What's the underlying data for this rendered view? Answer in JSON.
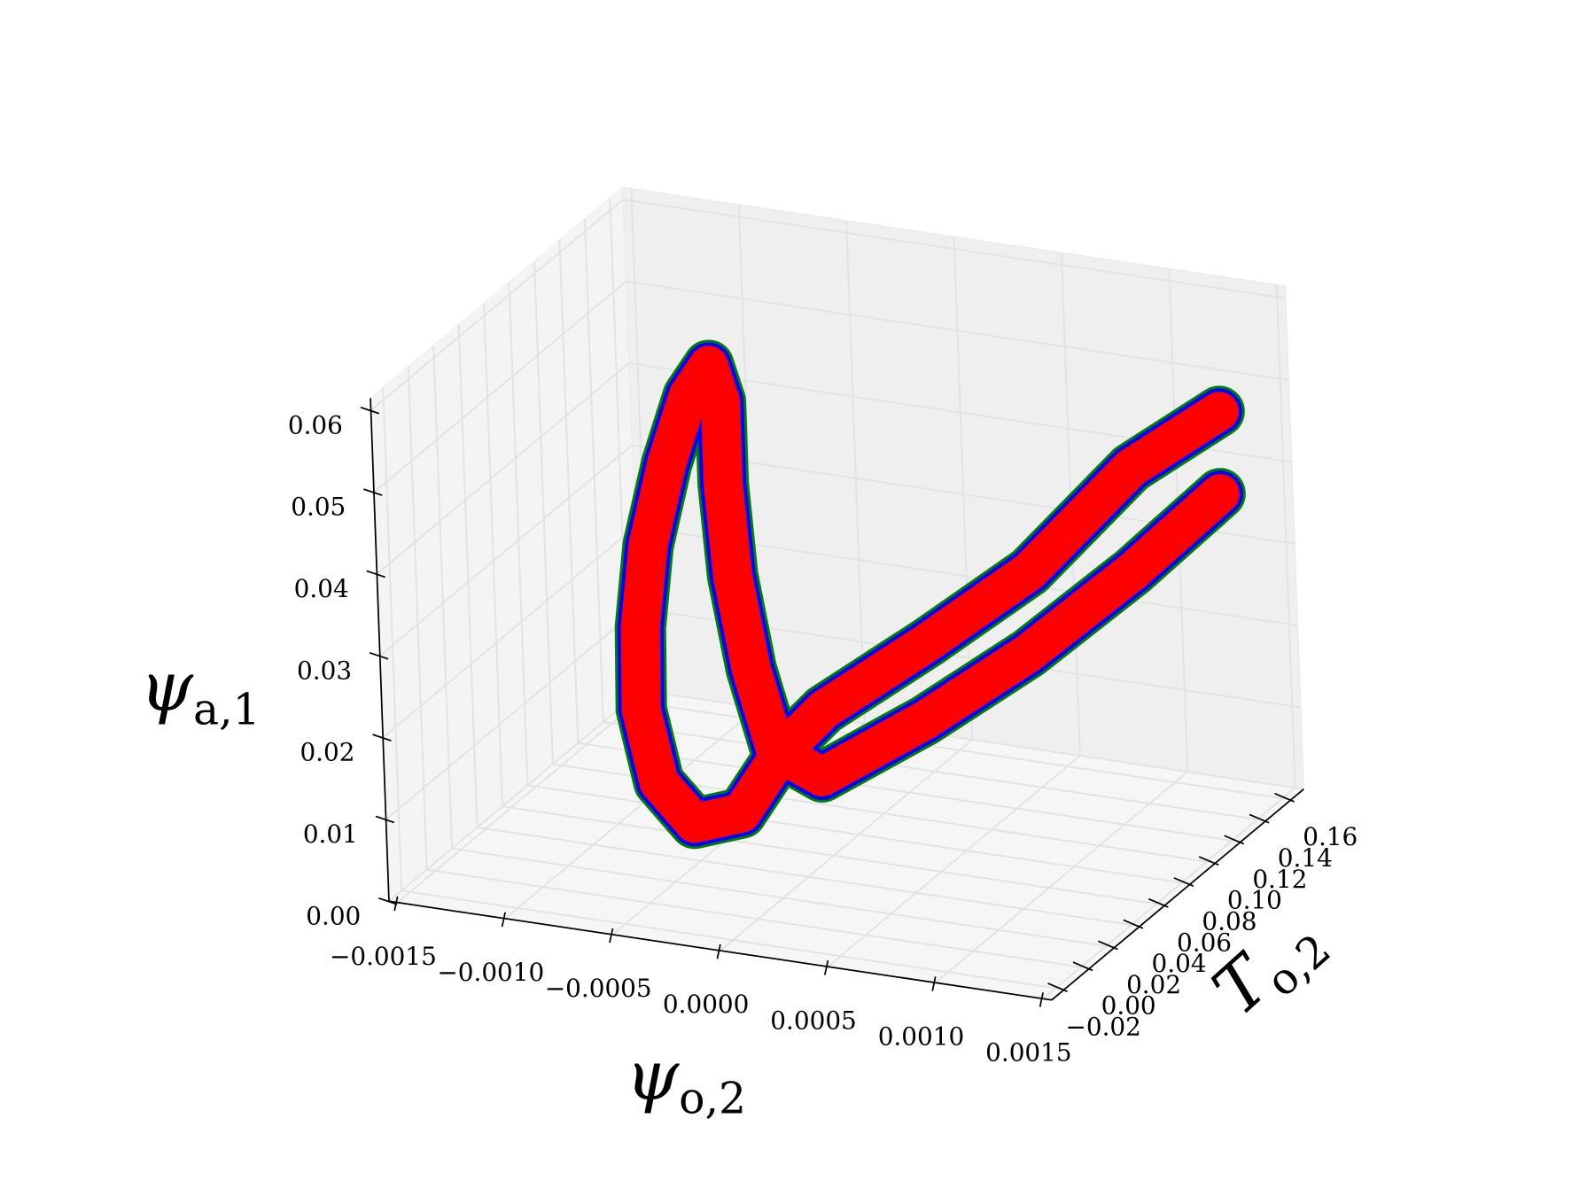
{
  "chart_data": {
    "type": "scatter3d",
    "xlabel": {
      "symbol": "ψ",
      "subscript": "o,2"
    },
    "ylabel": {
      "symbol": "T",
      "subscript": "o,2"
    },
    "zlabel": {
      "symbol": "ψ",
      "subscript": "a,1"
    },
    "x": [
      0.00127,
      0.00097,
      0.00066,
      0.00035,
      4e-05,
      -4e-05,
      -0.00012,
      -0.00028,
      -0.00044,
      -0.00051,
      -0.0005,
      -0.00045,
      -0.00047,
      -0.00048,
      -0.00044,
      -0.00033,
      -0.00021,
      -6e-05,
      -5e-05,
      -7e-05,
      2e-05,
      0.00033,
      0.00064,
      0.00096,
      0.00126
    ],
    "y": [
      0.16,
      0.14,
      0.11,
      0.08,
      0.05,
      0.03,
      0.01,
      0.0,
      0.0,
      0.0,
      0.0,
      0.0,
      0.02,
      0.04,
      0.05,
      0.04,
      0.02,
      0.0,
      0.01,
      0.03,
      0.05,
      0.08,
      0.11,
      0.14,
      0.16
    ],
    "z": [
      0.0464,
      0.0409,
      0.0309,
      0.0248,
      0.0193,
      0.0165,
      0.0112,
      0.0106,
      0.015,
      0.0236,
      0.0337,
      0.0439,
      0.0513,
      0.0569,
      0.0595,
      0.0568,
      0.0498,
      0.0417,
      0.0291,
      0.0164,
      0.011,
      0.0153,
      0.0208,
      0.0282,
      0.0363
    ],
    "colors": [
      "#008000",
      "#0000ff",
      "#ff0000"
    ],
    "xlim": [
      -0.00154,
      0.00154
    ],
    "ylim": [
      -0.03,
      0.17
    ],
    "zlim": [
      0,
      0.0615
    ],
    "xticks": [
      {
        "value": -0.0015,
        "label": "−0.0015"
      },
      {
        "value": -0.001,
        "label": "−0.0010"
      },
      {
        "value": -0.0005,
        "label": "−0.0005"
      },
      {
        "value": 0,
        "label": "0.0000"
      },
      {
        "value": 0.0005,
        "label": "0.0005"
      },
      {
        "value": 0.001,
        "label": "0.0010"
      },
      {
        "value": 0.0015,
        "label": "0.0015"
      }
    ],
    "yticks": [
      {
        "value": -0.02,
        "label": "−0.02"
      },
      {
        "value": 0,
        "label": "0.00"
      },
      {
        "value": 0.02,
        "label": "0.02"
      },
      {
        "value": 0.04,
        "label": "0.04"
      },
      {
        "value": 0.06,
        "label": "0.06"
      },
      {
        "value": 0.08,
        "label": "0.08"
      },
      {
        "value": 0.1,
        "label": "0.10"
      },
      {
        "value": 0.12,
        "label": "0.12"
      },
      {
        "value": 0.14,
        "label": "0.14"
      },
      {
        "value": 0.16,
        "label": "0.16"
      }
    ],
    "zticks": [
      {
        "value": 0,
        "label": "0.00"
      },
      {
        "value": 0.01,
        "label": "0.01"
      },
      {
        "value": 0.02,
        "label": "0.02"
      },
      {
        "value": 0.03,
        "label": "0.03"
      },
      {
        "value": 0.04,
        "label": "0.04"
      },
      {
        "value": 0.05,
        "label": "0.05"
      },
      {
        "value": 0.06,
        "label": "0.06"
      }
    ],
    "grid": true
  }
}
